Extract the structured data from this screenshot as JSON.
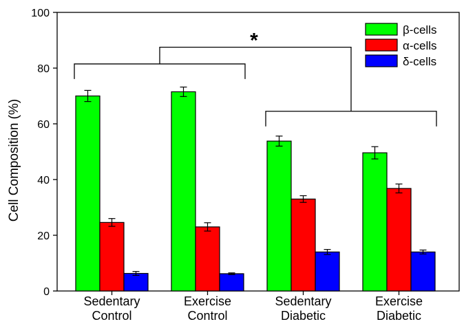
{
  "chart_data": {
    "type": "bar",
    "title": "",
    "xlabel": "",
    "ylabel": "Cell Composition (%)",
    "ylim": [
      0,
      100
    ],
    "yticks": [
      "0",
      "20",
      "40",
      "60",
      "80",
      "100"
    ],
    "categories": [
      [
        "Sedentary",
        "Control"
      ],
      [
        "Exercise",
        "Control"
      ],
      [
        "Sedentary",
        "Diabetic"
      ],
      [
        "Exercise",
        "Diabetic"
      ]
    ],
    "series": [
      {
        "name": "β-cells",
        "color": "#00ff00",
        "values": [
          70,
          71.5,
          53.8,
          49.6
        ],
        "errors": [
          2.0,
          1.7,
          1.8,
          2.2
        ]
      },
      {
        "name": "α-cells",
        "color": "#ff0000",
        "values": [
          24.6,
          23.0,
          33.0,
          36.8
        ],
        "errors": [
          1.4,
          1.5,
          1.2,
          1.6
        ]
      },
      {
        "name": "δ-cells",
        "color": "#0000ff",
        "values": [
          6.3,
          6.2,
          14.0,
          14.0
        ],
        "errors": [
          0.7,
          0.3,
          0.9,
          0.7
        ]
      }
    ],
    "legend_position": "top-right",
    "grid": false,
    "annotation": {
      "text": "*",
      "bracket_1_groups": [
        0,
        1
      ],
      "bracket_1_level": 81.5,
      "bracket_2_groups": [
        2,
        3
      ],
      "bracket_2_level": 64.5,
      "connector_level": 87.5
    }
  }
}
